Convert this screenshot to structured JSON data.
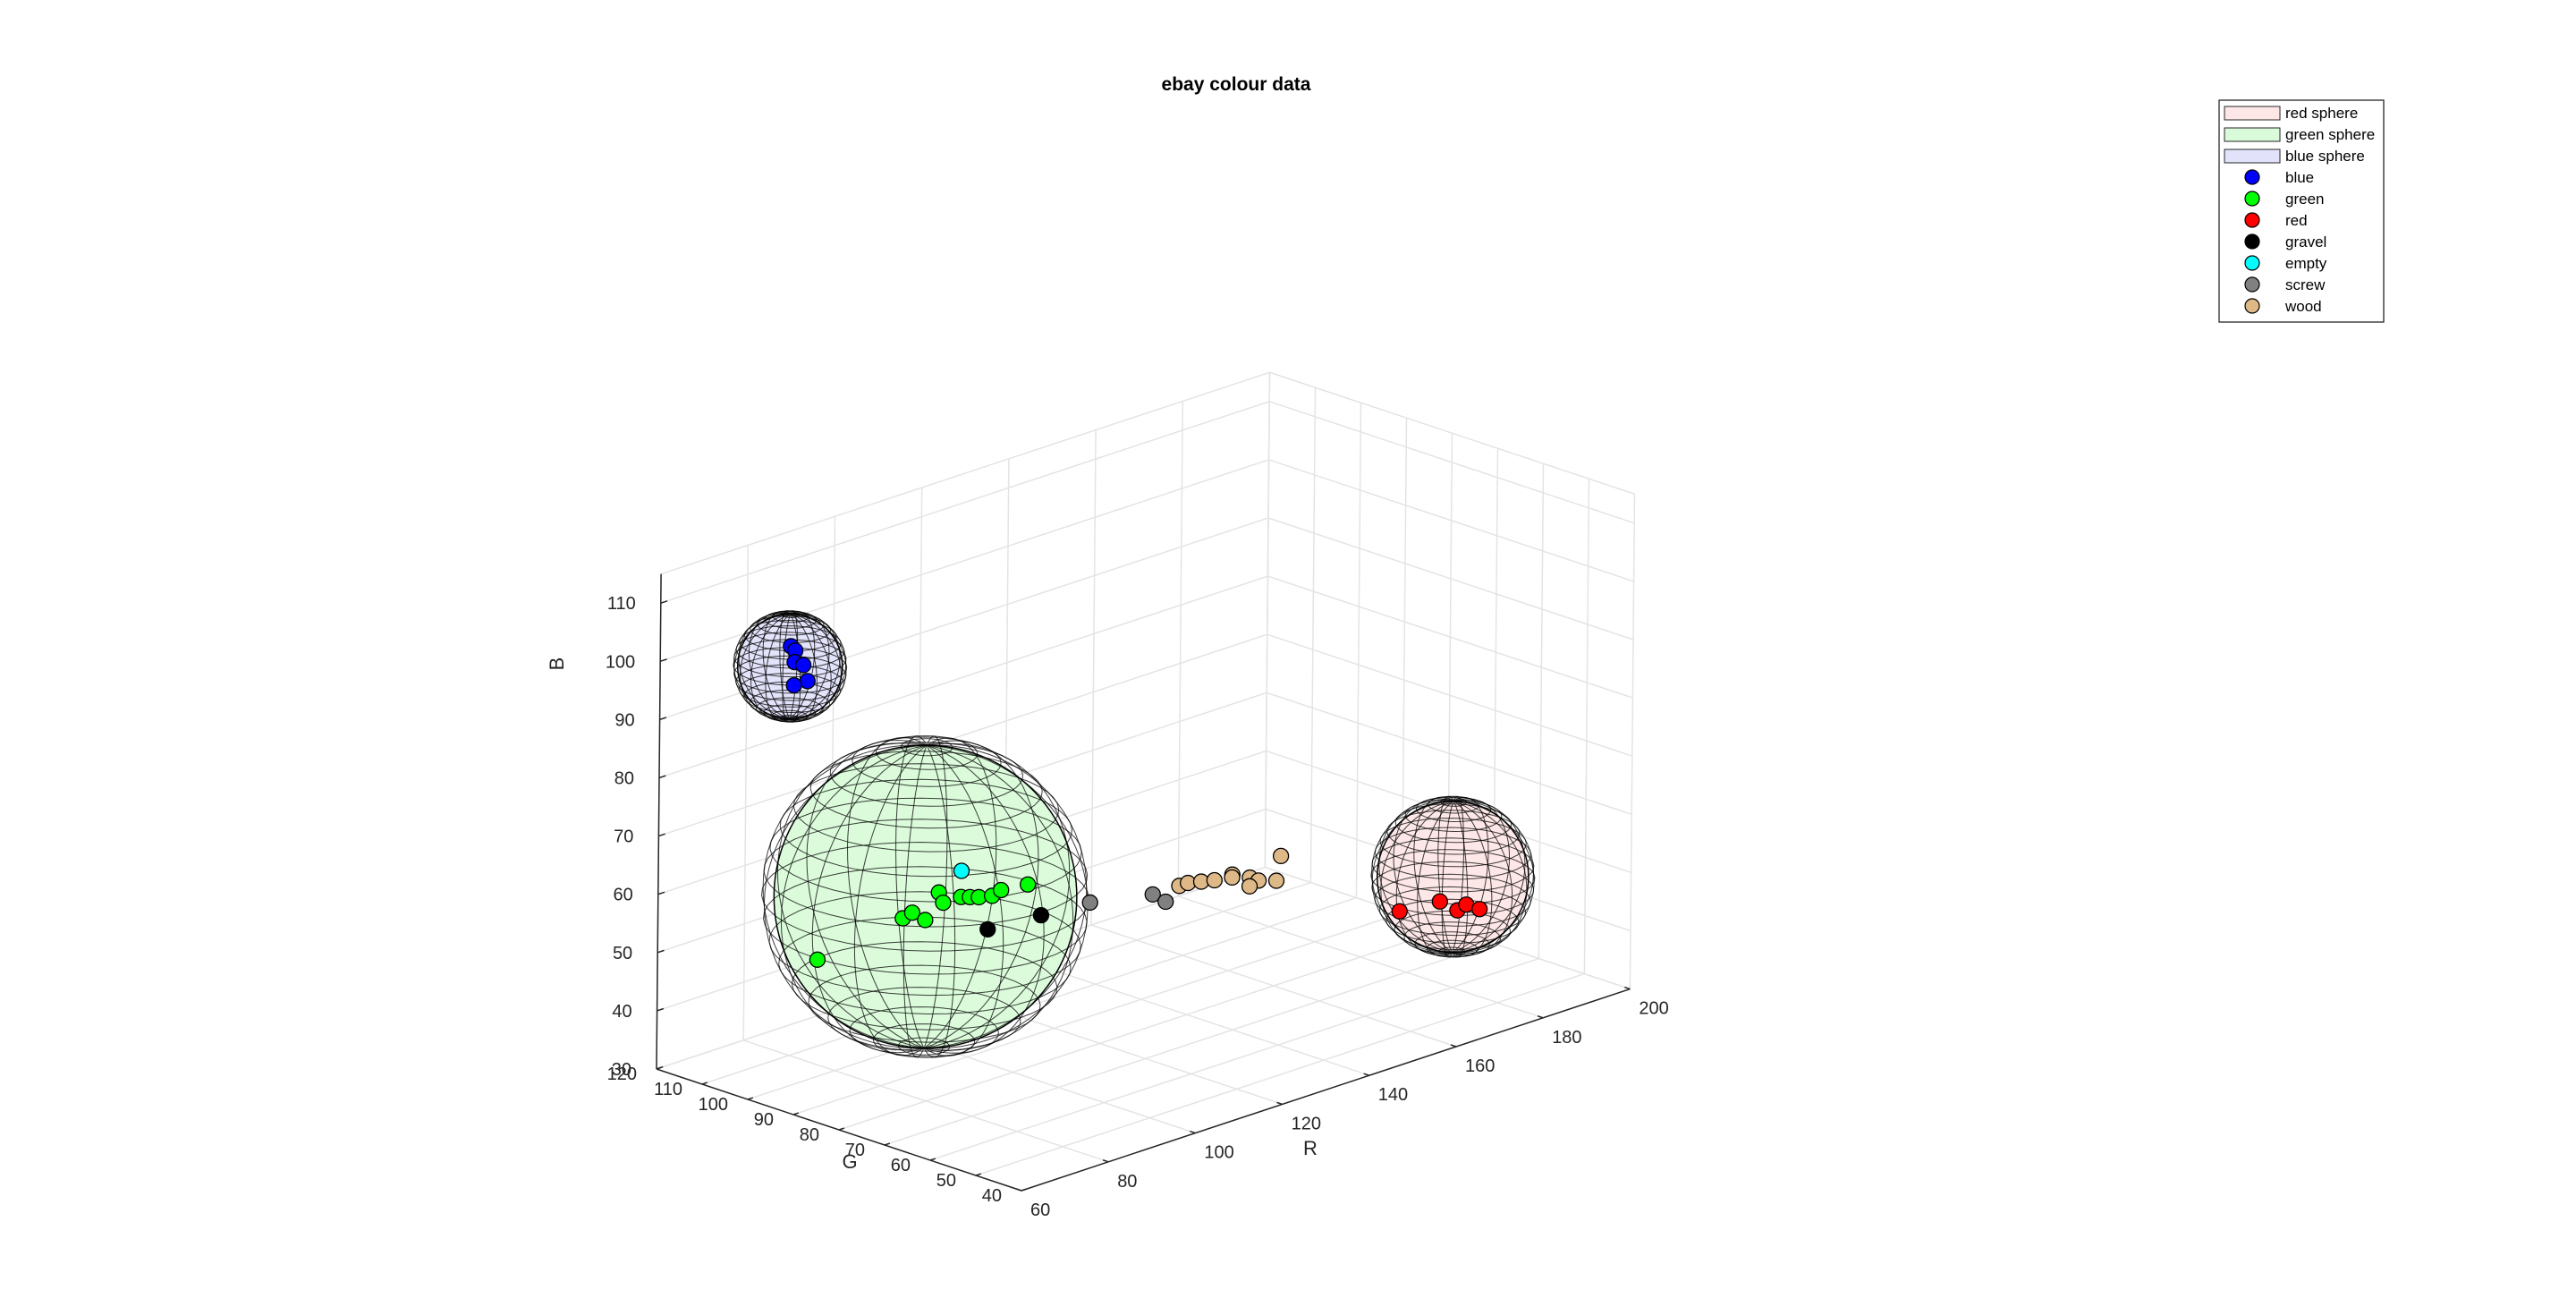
{
  "chart_data": {
    "type": "scatter3d",
    "title": "ebay colour data",
    "xlabel": "R",
    "ylabel": "G",
    "zlabel": "B",
    "xlim": [
      60,
      200
    ],
    "ylim": [
      40,
      120
    ],
    "zlim": [
      30,
      115
    ],
    "xticks": [
      "60",
      "80",
      "100",
      "120",
      "140",
      "160",
      "180",
      "200"
    ],
    "yticks": [
      "40",
      "50",
      "60",
      "70",
      "80",
      "90",
      "100",
      "110",
      "120"
    ],
    "zticks": [
      "30",
      "40",
      "50",
      "60",
      "70",
      "80",
      "90",
      "100",
      "110"
    ],
    "grid": true,
    "legend_position": "top-right",
    "spheres": [
      {
        "name": "red sphere",
        "color": "#fde6e6",
        "center": [
          180,
          60,
          49
        ],
        "radius": 13
      },
      {
        "name": "green sphere",
        "color": "#d9fbd9",
        "center": [
          90,
          90,
          60
        ],
        "radius": 26
      },
      {
        "name": "blue sphere",
        "color": "#e2e2fb",
        "center": [
          53,
          85,
          110
        ],
        "radius": 9
      }
    ],
    "series": [
      {
        "name": "blue",
        "color": "#0000ff",
        "points": [
          [
            50,
            82,
            115
          ],
          [
            51,
            82,
            114
          ],
          [
            53,
            84,
            111
          ],
          [
            55,
            84,
            110
          ],
          [
            56,
            84,
            107
          ],
          [
            55,
            86,
            106
          ]
        ]
      },
      {
        "name": "green",
        "color": "#00ff00",
        "points": [
          [
            80,
            104,
            48
          ],
          [
            88,
            93,
            56
          ],
          [
            87,
            90,
            58
          ],
          [
            90,
            90,
            56
          ],
          [
            91,
            88,
            61
          ],
          [
            92,
            88,
            59
          ],
          [
            94,
            86,
            60
          ],
          [
            95,
            85,
            60
          ],
          [
            96,
            84,
            60
          ],
          [
            98,
            83,
            60
          ],
          [
            102,
            79,
            62
          ],
          [
            99,
            82,
            61
          ]
        ]
      },
      {
        "name": "red",
        "color": "#ff0000",
        "points": [
          [
            172,
            64,
            44
          ],
          [
            176,
            59,
            46
          ],
          [
            179,
            58,
            44
          ],
          [
            180,
            57,
            45
          ],
          [
            182,
            56,
            44
          ]
        ]
      },
      {
        "name": "gravel",
        "color": "#000000",
        "points": [
          [
            96,
            82,
            55
          ],
          [
            103,
            77,
            57
          ]
        ]
      },
      {
        "name": "empty",
        "color": "#00ffff",
        "points": [
          [
            93,
            85,
            65
          ]
        ]
      },
      {
        "name": "screw",
        "color": "#808080",
        "points": [
          [
            109,
            72,
            59
          ],
          [
            115,
            64,
            61
          ],
          [
            118,
            64,
            59
          ]
        ]
      },
      {
        "name": "wood",
        "color": "#deb887",
        "points": [
          [
            119,
            62,
            62
          ],
          [
            121,
            62,
            62
          ],
          [
            123,
            61,
            62
          ],
          [
            125,
            60,
            62
          ],
          [
            127,
            58,
            63
          ],
          [
            128,
            59,
            62
          ],
          [
            130,
            57,
            62
          ],
          [
            132,
            57,
            61
          ],
          [
            131,
            58,
            60
          ],
          [
            134,
            55,
            61
          ],
          [
            135,
            55,
            65
          ]
        ]
      }
    ]
  }
}
